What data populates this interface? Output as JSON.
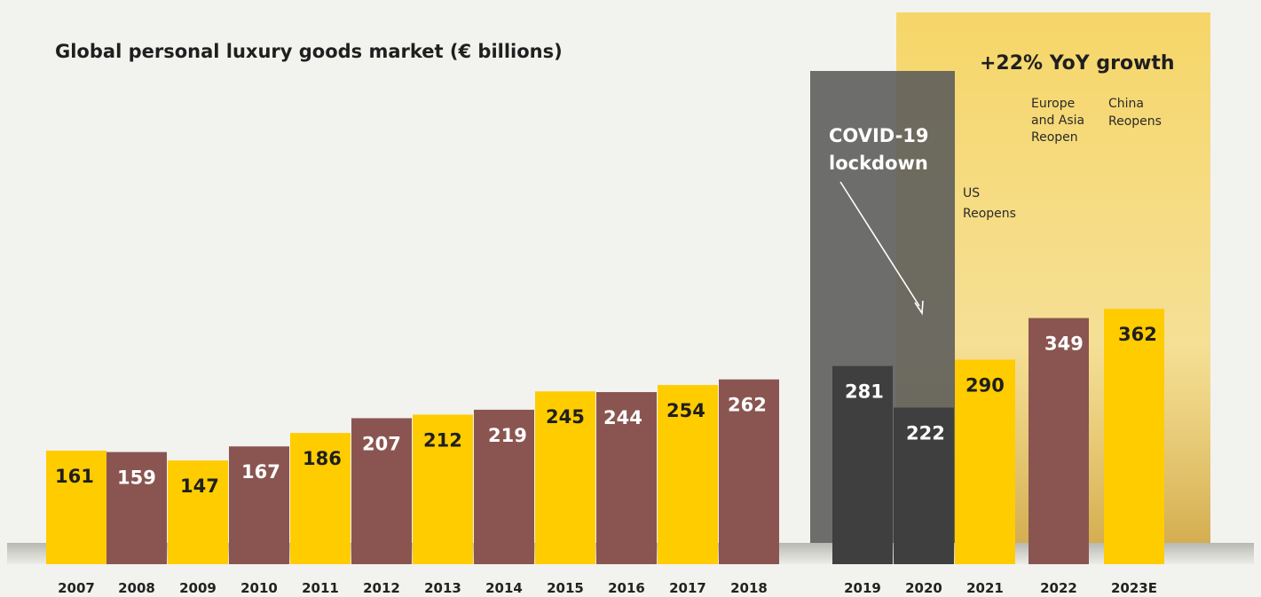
{
  "chart_data": {
    "type": "bar",
    "title": "Global personal luxury goods market (€ billions)",
    "categories": [
      "2007",
      "2008",
      "2009",
      "2010",
      "2011",
      "2012",
      "2013",
      "2014",
      "2015",
      "2016",
      "2017",
      "2018",
      "2019",
      "2020",
      "2021",
      "2022",
      "2023E"
    ],
    "values": [
      161,
      159,
      147,
      167,
      186,
      207,
      212,
      219,
      245,
      244,
      254,
      262,
      281,
      222,
      290,
      349,
      362
    ],
    "bar_colors": [
      "#ffcc00",
      "#8a5550",
      "#ffcc00",
      "#8a5550",
      "#ffcc00",
      "#8a5550",
      "#ffcc00",
      "#8a5550",
      "#ffcc00",
      "#8a5550",
      "#ffcc00",
      "#8a5550",
      "#3f3f3f",
      "#3f3f3f",
      "#ffcc00",
      "#8a5550",
      "#ffcc00"
    ],
    "ylim": [
      0,
      380
    ],
    "xlabel": "",
    "ylabel": "",
    "grid": false,
    "legend": "none",
    "annotations": {
      "covid": "COVID-19 lockdown",
      "growth": "+22% YoY growth",
      "us_reopens": "US Reopens",
      "europe_asia_reopen": "Europe and Asia Reopen",
      "china_reopens": "China Reopens"
    }
  },
  "colors": {
    "yellow": "#ffcc00",
    "brown": "#8a5550",
    "dark": "#3f3f3f",
    "covid_panel": "#6a6a6a",
    "highlight": "#f7d35a",
    "background": "#f2f2ee"
  }
}
